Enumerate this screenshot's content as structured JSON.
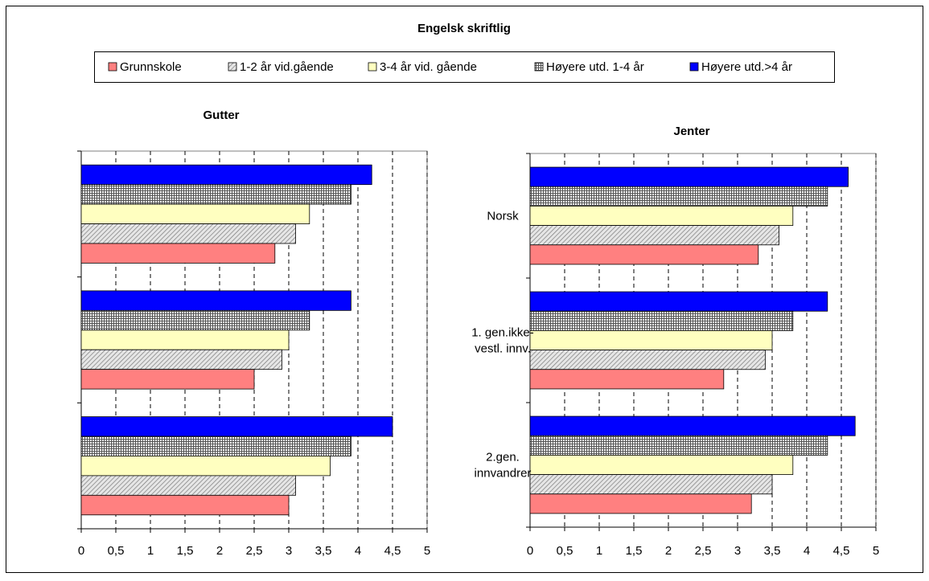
{
  "title": "Engelsk skriftlig",
  "legend": {
    "placement": "top",
    "items": [
      {
        "label": "Grunnskole",
        "pattern": "solid-salmon"
      },
      {
        "label": "1-2 år vid.gående",
        "pattern": "diagonal-hatch"
      },
      {
        "label": "3-4 år vid. gående",
        "pattern": "solid-lightyellow"
      },
      {
        "label": "Høyere utd. 1-4 år",
        "pattern": "crosshatch"
      },
      {
        "label": "Høyere utd.>4 år",
        "pattern": "solid-blue"
      }
    ]
  },
  "colors": {
    "grunnskole": "#ff8080",
    "vid12": "#d4d4d4",
    "vid34": "#ffffc0",
    "hoy14": "#b8b8b8",
    "hoy4": "#0000ff",
    "gridline": "#000000"
  },
  "chart_data": [
    {
      "type": "bar",
      "orientation": "horizontal",
      "title": "Gutter",
      "categories": [
        "",
        "",
        ""
      ],
      "xlim": [
        0,
        5
      ],
      "xticks": [
        "0",
        "0,5",
        "1",
        "1,5",
        "2",
        "2,5",
        "3",
        "3,5",
        "4",
        "4,5",
        "5"
      ],
      "grid": "vertical-dashed",
      "series": [
        {
          "name": "Grunnskole",
          "values": [
            2.8,
            2.5,
            3.0
          ]
        },
        {
          "name": "1-2 år vid.gående",
          "values": [
            3.1,
            2.9,
            3.1
          ]
        },
        {
          "name": "3-4 år vid. gående",
          "values": [
            3.3,
            3.0,
            3.6
          ]
        },
        {
          "name": "Høyere utd. 1-4 år",
          "values": [
            3.9,
            3.3,
            3.9
          ]
        },
        {
          "name": "Høyere utd.>4 år",
          "values": [
            4.2,
            3.9,
            4.5
          ]
        }
      ]
    },
    {
      "type": "bar",
      "orientation": "horizontal",
      "title": "Jenter",
      "categories": [
        "Norsk",
        "1. gen.ikke-vestl. innv.",
        "2.gen. innvandrer"
      ],
      "category_lines": [
        [
          "Norsk"
        ],
        [
          "1. gen.ikke-",
          "vestl. innv."
        ],
        [
          "2.gen.",
          "innvandrer"
        ]
      ],
      "xlim": [
        0,
        5
      ],
      "xticks": [
        "0",
        "0,5",
        "1",
        "1,5",
        "2",
        "2,5",
        "3",
        "3,5",
        "4",
        "4,5",
        "5"
      ],
      "grid": "vertical-dashed",
      "series": [
        {
          "name": "Grunnskole",
          "values": [
            3.3,
            2.8,
            3.2
          ]
        },
        {
          "name": "1-2 år vid.gående",
          "values": [
            3.6,
            3.4,
            3.5
          ]
        },
        {
          "name": "3-4 år vid. gående",
          "values": [
            3.8,
            3.5,
            3.8
          ]
        },
        {
          "name": "Høyere utd. 1-4 år",
          "values": [
            4.3,
            3.8,
            4.3
          ]
        },
        {
          "name": "Høyere utd.>4 år",
          "values": [
            4.6,
            4.3,
            4.7
          ]
        }
      ]
    }
  ]
}
